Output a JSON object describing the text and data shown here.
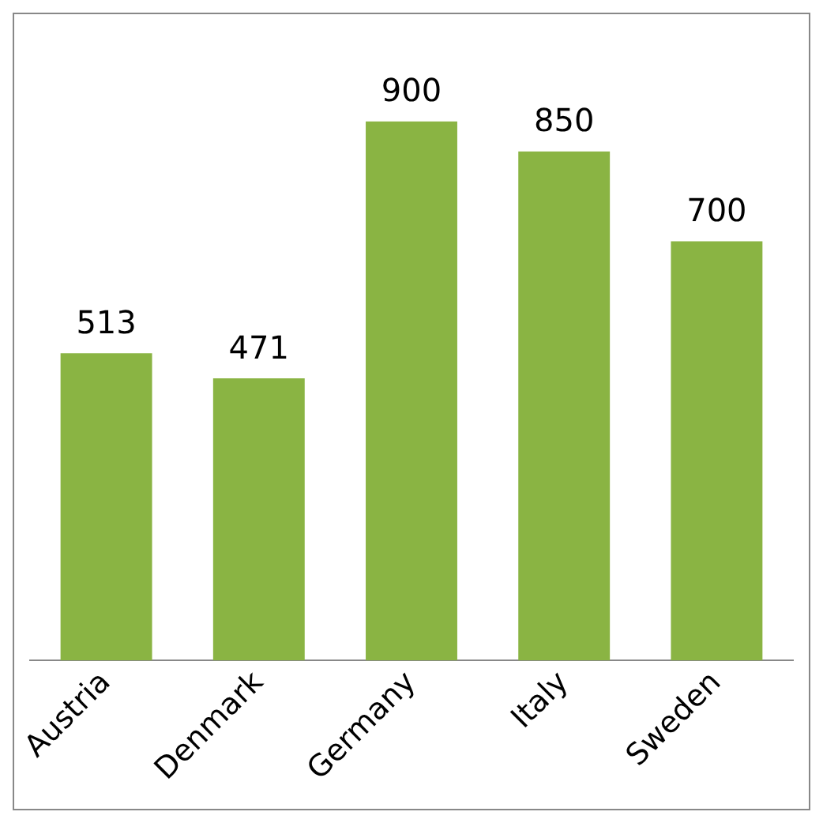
{
  "chart_data": {
    "type": "bar",
    "categories": [
      "Austria",
      "Denmark",
      "Germany",
      "Italy",
      "Sweden"
    ],
    "values": [
      513,
      471,
      900,
      850,
      700
    ],
    "color": "#8ab443",
    "data_labels": true,
    "grid": false,
    "legend": false
  }
}
